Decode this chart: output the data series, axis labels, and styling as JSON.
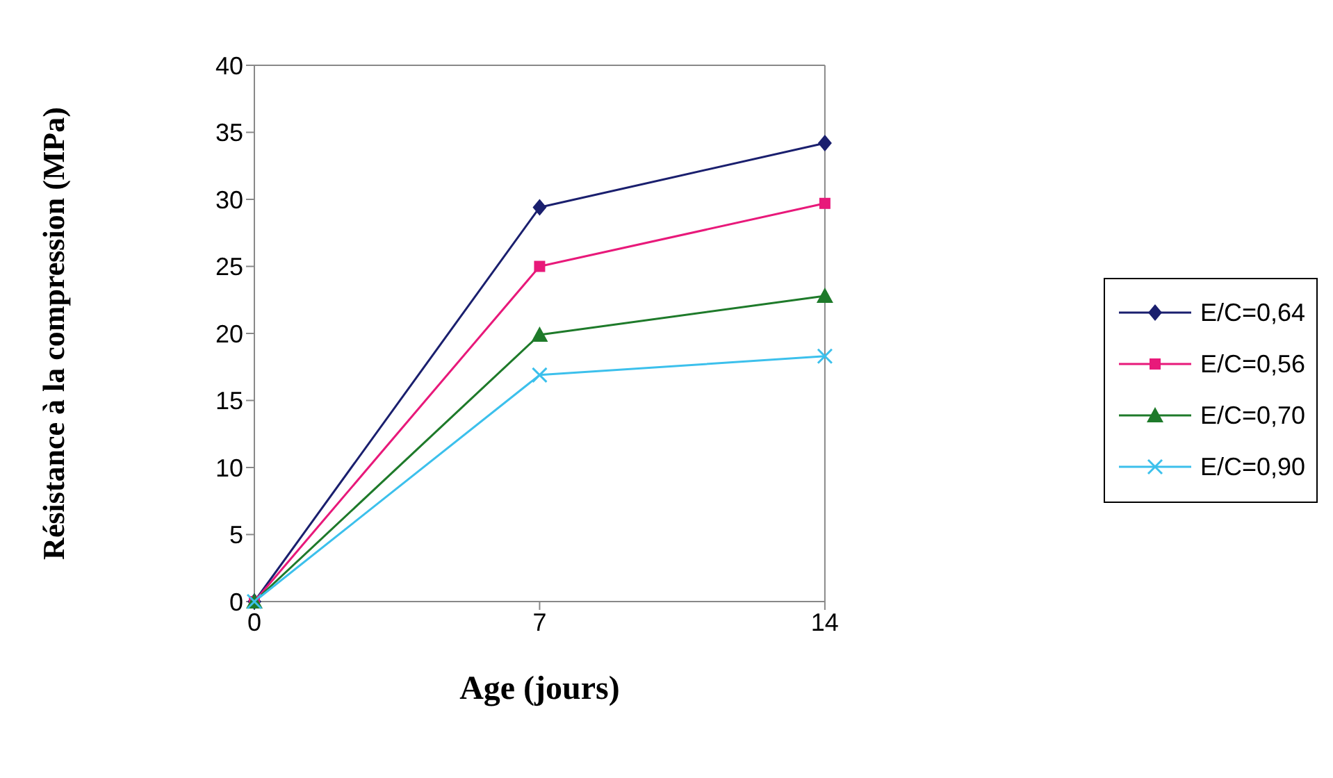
{
  "chart_data": {
    "type": "line",
    "xlabel": "Age (jours)",
    "ylabel": "Résistance à la compression (MPa)",
    "x": [
      0,
      7,
      14
    ],
    "xlim": [
      0,
      14
    ],
    "xticks": [
      0,
      7,
      14
    ],
    "ylim": [
      0,
      40
    ],
    "yticks": [
      0,
      5,
      10,
      15,
      20,
      25,
      30,
      35,
      40
    ],
    "grid": false,
    "legend": "right",
    "series": [
      {
        "name": "E/C=0,64",
        "color": "#1a1f6e",
        "marker": "diamond",
        "values": [
          0,
          29.4,
          34.2
        ]
      },
      {
        "name": "E/C=0,56",
        "color": "#e8197a",
        "marker": "square",
        "values": [
          0,
          25,
          29.7
        ]
      },
      {
        "name": "E/C=0,70",
        "color": "#1e7a2a",
        "marker": "triangle",
        "values": [
          0,
          19.9,
          22.8
        ]
      },
      {
        "name": "E/C=0,90",
        "color": "#3cc0ec",
        "marker": "cross",
        "values": [
          0,
          16.9,
          18.3
        ]
      }
    ]
  }
}
